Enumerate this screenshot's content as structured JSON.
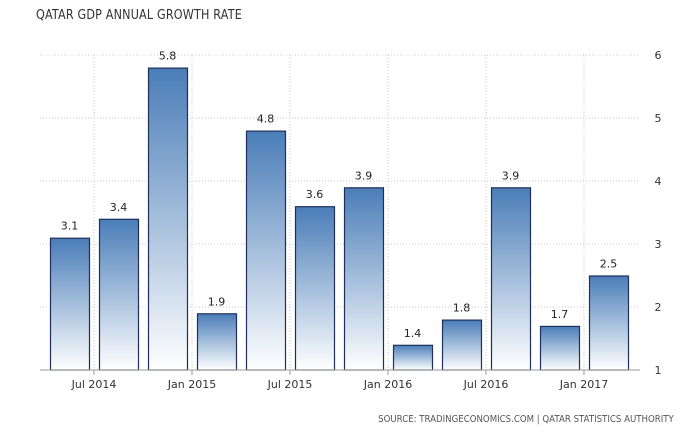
{
  "chart_data": {
    "type": "bar",
    "title": "QATAR GDP ANNUAL GROWTH RATE",
    "source": "SOURCE: TRADINGECONOMICS.COM | QATAR STATISTICS AUTHORITY",
    "values": [
      3.1,
      3.4,
      5.8,
      1.9,
      4.8,
      3.6,
      3.9,
      1.4,
      1.8,
      3.9,
      1.7,
      2.5
    ],
    "data_labels": [
      "3.1",
      "3.4",
      "5.8",
      "1.9",
      "4.8",
      "3.6",
      "3.9",
      "1.4",
      "1.8",
      "3.9",
      "1.7",
      "2.5"
    ],
    "x_ticks": [
      {
        "label": "Jul 2014",
        "bar_index": 0.5
      },
      {
        "label": "Jan 2015",
        "bar_index": 2.5
      },
      {
        "label": "Jul 2015",
        "bar_index": 4.5
      },
      {
        "label": "Jan 2016",
        "bar_index": 6.5
      },
      {
        "label": "Jul 2016",
        "bar_index": 8.5
      },
      {
        "label": "Jan 2017",
        "bar_index": 10.5
      }
    ],
    "y_ticks": [
      1,
      2,
      3,
      4,
      5,
      6
    ],
    "ylim": [
      1,
      6
    ],
    "y_axis_side": "right",
    "grid": "dotted",
    "xlabel": "",
    "ylabel": "",
    "colors": {
      "bar_top": "#4a7db8",
      "bar_bottom": "#ffffff",
      "bar_stroke": "#1f2f5a",
      "grid": "#c8c8c8"
    }
  }
}
